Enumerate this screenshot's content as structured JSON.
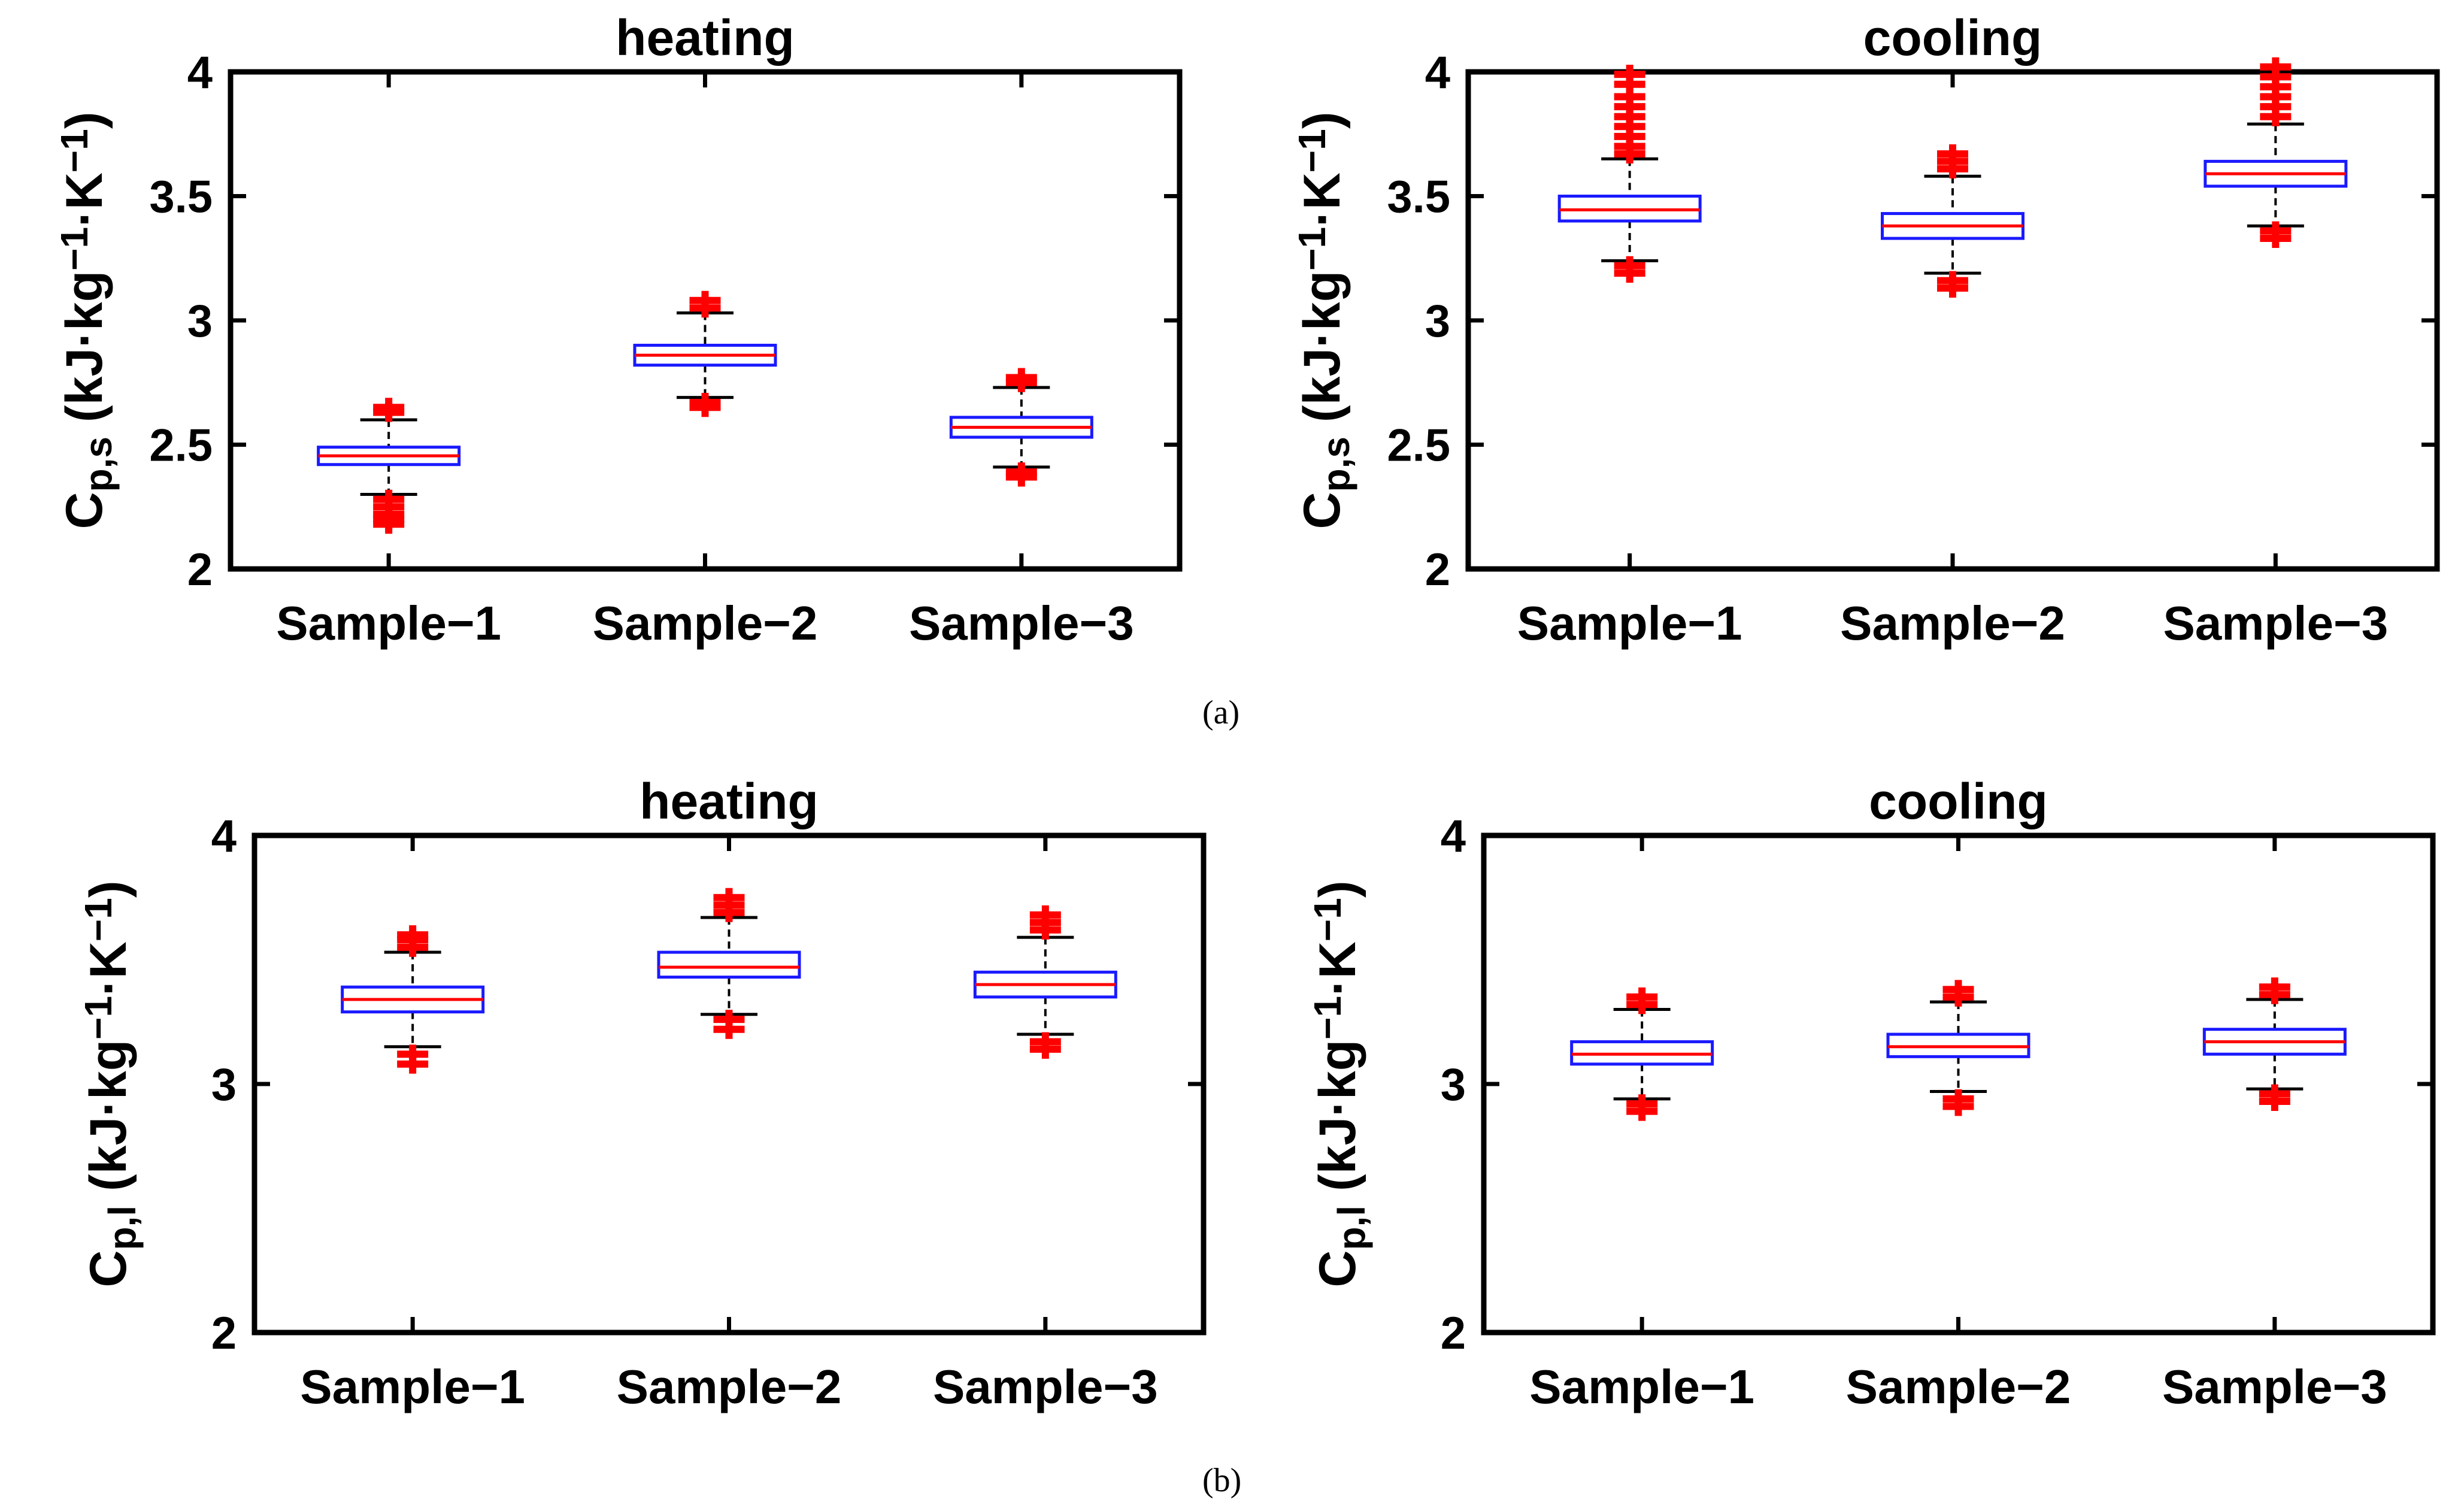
{
  "figure": {
    "caption_a": "(a)",
    "caption_b": "(b)"
  },
  "colors": {
    "box": "#1a1aff",
    "median": "#ff0000",
    "outlier": "#ff0000",
    "whisker": "#000000",
    "axis": "#000000"
  },
  "chart_data": [
    {
      "id": "a-heating",
      "type": "box",
      "title": "heating",
      "ylabel": "C",
      "ylabel_sub": "p,s",
      "ylabel_unit": "(kJ·kg",
      "ylabel_exp1": "−1",
      "ylabel_mid": "·K",
      "ylabel_exp2": "−1",
      "ylabel_end": ")",
      "ylim": [
        2,
        4
      ],
      "yticks": [
        "2",
        "2.5",
        "3",
        "3.5",
        "4"
      ],
      "categories": [
        "Sample−1",
        "Sample−2",
        "Sample−3"
      ],
      "boxes": [
        {
          "q1": 2.42,
          "median": 2.455,
          "q3": 2.49,
          "wlo": 2.3,
          "whi": 2.6,
          "outliers_lo": [
            2.28,
            2.25,
            2.22,
            2.2,
            2.18
          ],
          "outliers_hi": [
            2.63,
            2.65
          ]
        },
        {
          "q1": 2.82,
          "median": 2.86,
          "q3": 2.9,
          "wlo": 2.69,
          "whi": 3.03,
          "outliers_lo": [
            2.67,
            2.65
          ],
          "outliers_hi": [
            3.05,
            3.08
          ]
        },
        {
          "q1": 2.53,
          "median": 2.57,
          "q3": 2.61,
          "wlo": 2.41,
          "whi": 2.73,
          "outliers_lo": [
            2.39,
            2.37
          ],
          "outliers_hi": [
            2.75,
            2.77
          ]
        }
      ]
    },
    {
      "id": "a-cooling",
      "type": "box",
      "title": "cooling",
      "ylabel": "C",
      "ylabel_sub": "p,s",
      "ylabel_unit": "(kJ·kg",
      "ylabel_exp1": "−1",
      "ylabel_mid": "·K",
      "ylabel_exp2": "−1",
      "ylabel_end": ")",
      "ylim": [
        2,
        4
      ],
      "yticks": [
        "2",
        "2.5",
        "3",
        "3.5",
        "4"
      ],
      "categories": [
        "Sample−1",
        "Sample−2",
        "Sample−3"
      ],
      "boxes": [
        {
          "q1": 3.4,
          "median": 3.445,
          "q3": 3.5,
          "wlo": 3.24,
          "whi": 3.65,
          "outliers_lo": [
            3.22,
            3.19
          ],
          "outliers_hi": [
            3.67,
            3.7,
            3.74,
            3.78,
            3.82,
            3.86,
            3.9,
            3.95,
            3.99
          ]
        },
        {
          "q1": 3.33,
          "median": 3.38,
          "q3": 3.43,
          "wlo": 3.19,
          "whi": 3.58,
          "outliers_lo": [
            3.16,
            3.13
          ],
          "outliers_hi": [
            3.61,
            3.64,
            3.67
          ]
        },
        {
          "q1": 3.54,
          "median": 3.59,
          "q3": 3.64,
          "wlo": 3.38,
          "whi": 3.79,
          "outliers_lo": [
            3.36,
            3.33
          ],
          "outliers_hi": [
            3.82,
            3.86,
            3.9,
            3.94,
            3.98,
            4.02
          ]
        }
      ]
    },
    {
      "id": "b-heating",
      "type": "box",
      "title": "heating",
      "ylabel": "C",
      "ylabel_sub": "p,l",
      "ylabel_unit": "(kJ·kg",
      "ylabel_exp1": "−1",
      "ylabel_mid": "·K",
      "ylabel_exp2": "−1",
      "ylabel_end": ")",
      "ylim": [
        2,
        4
      ],
      "yticks": [
        "2",
        "3",
        "4"
      ],
      "categories": [
        "Sample−1",
        "Sample−2",
        "Sample−3"
      ],
      "boxes": [
        {
          "q1": 3.29,
          "median": 3.34,
          "q3": 3.39,
          "wlo": 3.15,
          "whi": 3.53,
          "outliers_lo": [
            3.12,
            3.08
          ],
          "outliers_hi": [
            3.55,
            3.58,
            3.6
          ]
        },
        {
          "q1": 3.43,
          "median": 3.47,
          "q3": 3.53,
          "wlo": 3.28,
          "whi": 3.67,
          "outliers_lo": [
            3.26,
            3.22
          ],
          "outliers_hi": [
            3.69,
            3.72,
            3.75
          ]
        },
        {
          "q1": 3.35,
          "median": 3.4,
          "q3": 3.45,
          "wlo": 3.2,
          "whi": 3.59,
          "outliers_lo": [
            3.17,
            3.14
          ],
          "outliers_hi": [
            3.62,
            3.65,
            3.68
          ]
        }
      ]
    },
    {
      "id": "b-cooling",
      "type": "box",
      "title": "cooling",
      "ylabel": "C",
      "ylabel_sub": "p,l",
      "ylabel_unit": "(kJ·kg",
      "ylabel_exp1": "−1",
      "ylabel_mid": "·K",
      "ylabel_exp2": "−1",
      "ylabel_end": ")",
      "ylim": [
        2,
        4
      ],
      "yticks": [
        "2",
        "3",
        "4"
      ],
      "categories": [
        "Sample−1",
        "Sample−2",
        "Sample−3"
      ],
      "boxes": [
        {
          "q1": 3.08,
          "median": 3.12,
          "q3": 3.17,
          "wlo": 2.94,
          "whi": 3.3,
          "outliers_lo": [
            2.92,
            2.89
          ],
          "outliers_hi": [
            3.32,
            3.35
          ]
        },
        {
          "q1": 3.11,
          "median": 3.15,
          "q3": 3.2,
          "wlo": 2.97,
          "whi": 3.33,
          "outliers_lo": [
            2.94,
            2.91
          ],
          "outliers_hi": [
            3.35,
            3.38
          ]
        },
        {
          "q1": 3.12,
          "median": 3.17,
          "q3": 3.22,
          "wlo": 2.98,
          "whi": 3.34,
          "outliers_lo": [
            2.96,
            2.93
          ],
          "outliers_hi": [
            3.36,
            3.39
          ]
        }
      ]
    }
  ]
}
